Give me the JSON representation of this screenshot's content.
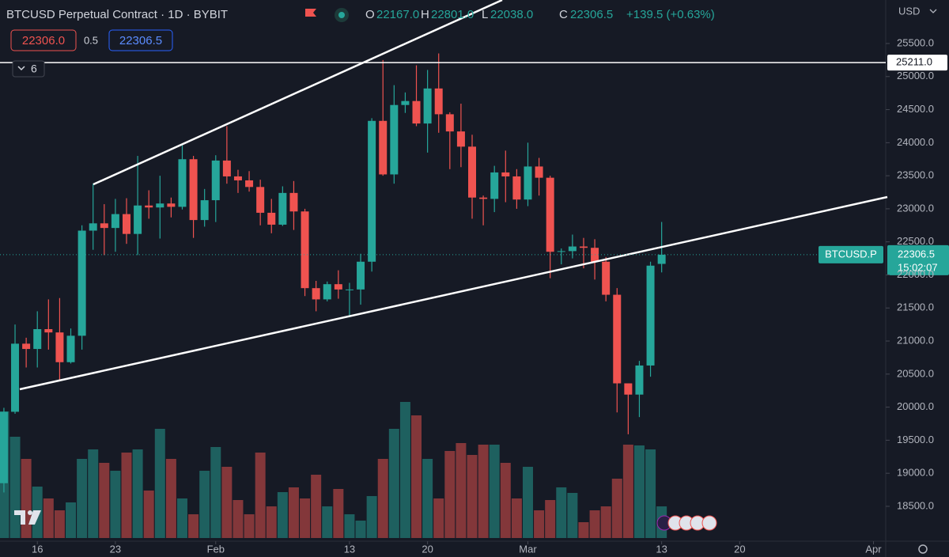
{
  "header": {
    "title": "BTCUSD Perpetual Contract · 1D · BYBIT",
    "o_label": "O",
    "open": "22167.0",
    "h_label": "H",
    "high": "22801.0",
    "l_label": "L",
    "low": "22038.0",
    "c_label": "C",
    "close": "22306.5",
    "change": "+139.5 (+0.63%)",
    "sell_price": "22306.0",
    "spread": "0.5",
    "buy_price": "22306.5",
    "indicator_count": "6",
    "currency": "USD"
  },
  "chart_data": {
    "type": "candlestick",
    "candles": {
      "open": [
        18850,
        19930,
        20960,
        20880,
        21180,
        21130,
        20680,
        21080,
        22670,
        22780,
        22710,
        22920,
        22620,
        23050,
        23020,
        23080,
        23030,
        23750,
        22830,
        23130,
        23730,
        23490,
        23430,
        23330,
        22940,
        22760,
        23240,
        22960,
        21800,
        21630,
        21860,
        21780,
        21780,
        22200,
        24330,
        23520,
        24570,
        24630,
        24290,
        24820,
        24430,
        24170,
        23940,
        23170,
        23150,
        23550,
        23490,
        23140,
        23640,
        23470,
        22350,
        22360,
        22430,
        22410,
        22200,
        21700,
        20360,
        20190,
        20630,
        22167
      ],
      "high": [
        19990,
        21250,
        21050,
        21450,
        21630,
        21650,
        21190,
        22750,
        23380,
        23070,
        23150,
        23160,
        23800,
        23280,
        23500,
        23170,
        23960,
        23800,
        23300,
        23810,
        24250,
        23590,
        23570,
        23440,
        23150,
        23340,
        23420,
        23000,
        21910,
        21900,
        22070,
        21880,
        22320,
        24370,
        25250,
        24870,
        24760,
        25170,
        25100,
        25350,
        24460,
        24590,
        24120,
        23200,
        23650,
        23880,
        23600,
        24000,
        23770,
        23500,
        22400,
        22610,
        22560,
        22540,
        22270,
        21800,
        20360,
        20700,
        22200,
        22801
      ],
      "low": [
        18710,
        19900,
        20600,
        20600,
        20870,
        20400,
        20660,
        20870,
        22380,
        22300,
        22350,
        22470,
        22300,
        22850,
        22550,
        22870,
        22990,
        22560,
        22730,
        22800,
        23380,
        23240,
        23260,
        22750,
        22630,
        22740,
        22680,
        21680,
        21450,
        21600,
        21640,
        21360,
        21550,
        22050,
        23500,
        23380,
        24450,
        24250,
        23850,
        24150,
        23600,
        23630,
        22850,
        22750,
        22950,
        23100,
        23000,
        23040,
        23200,
        21950,
        22160,
        22250,
        22100,
        21930,
        21600,
        19920,
        19590,
        19850,
        20460,
        22038
      ],
      "close": [
        19930,
        20960,
        20880,
        21180,
        21130,
        20680,
        21080,
        22670,
        22780,
        22710,
        22920,
        22620,
        23050,
        23020,
        23080,
        23030,
        23750,
        22830,
        23130,
        23730,
        23490,
        23430,
        23330,
        22940,
        22760,
        23240,
        22960,
        21800,
        21630,
        21860,
        21780,
        21780,
        22200,
        24330,
        23520,
        24570,
        24630,
        24290,
        24820,
        24430,
        24170,
        23940,
        23170,
        23150,
        23550,
        23490,
        23140,
        23640,
        23470,
        22350,
        22360,
        22430,
        22410,
        22200,
        21700,
        20360,
        20190,
        20630,
        22140,
        22306.5
      ]
    },
    "volume": [
      160,
      128,
      100,
      65,
      50,
      35,
      45,
      100,
      112,
      95,
      85,
      108,
      112,
      60,
      138,
      100,
      50,
      30,
      85,
      115,
      90,
      48,
      30,
      108,
      40,
      58,
      64,
      50,
      80,
      40,
      62,
      30,
      22,
      53,
      100,
      138,
      172,
      155,
      100,
      50,
      110,
      120,
      105,
      118,
      118,
      95,
      50,
      90,
      35,
      48,
      64,
      57,
      20,
      35,
      40,
      75,
      118,
      117,
      112,
      40
    ],
    "up_color": "#26a69a",
    "down_color": "#ef5350",
    "xlim": [
      -0.35,
      79.1
    ],
    "xticks": [
      {
        "value": 3,
        "label": "16"
      },
      {
        "value": 10,
        "label": "23"
      },
      {
        "value": 19,
        "label": "Feb"
      },
      {
        "value": 31,
        "label": "13"
      },
      {
        "value": 38,
        "label": "20"
      },
      {
        "value": 47,
        "label": "Mar"
      },
      {
        "value": 59,
        "label": "13"
      },
      {
        "value": 66,
        "label": "20"
      },
      {
        "value": 78,
        "label": "Apr"
      }
    ],
    "ylim": [
      17973,
      26158
    ],
    "yticks": [
      {
        "value": 18500,
        "label": "18500.0"
      },
      {
        "value": 19000,
        "label": "19000.0"
      },
      {
        "value": 19500,
        "label": "19500.0"
      },
      {
        "value": 20000,
        "label": "20000.0"
      },
      {
        "value": 20500,
        "label": "20500.0"
      },
      {
        "value": 21000,
        "label": "21000.0"
      },
      {
        "value": 21500,
        "label": "21500.0"
      },
      {
        "value": 22000,
        "label": "22000.0"
      },
      {
        "value": 22500,
        "label": "22500.0"
      },
      {
        "value": 23000,
        "label": "23000.0"
      },
      {
        "value": 23500,
        "label": "23500.0"
      },
      {
        "value": 24000,
        "label": "24000.0"
      },
      {
        "value": 24500,
        "label": "24500.0"
      },
      {
        "value": 25000,
        "label": "25000.0"
      },
      {
        "value": 25500,
        "label": "25500.0"
      }
    ],
    "hline": {
      "value": 25211,
      "label": "25211.0"
    },
    "last_price": {
      "value": 22306.5,
      "label": "22306.5",
      "symbol": "BTCUSD.P",
      "countdown": "15:02:07"
    }
  }
}
